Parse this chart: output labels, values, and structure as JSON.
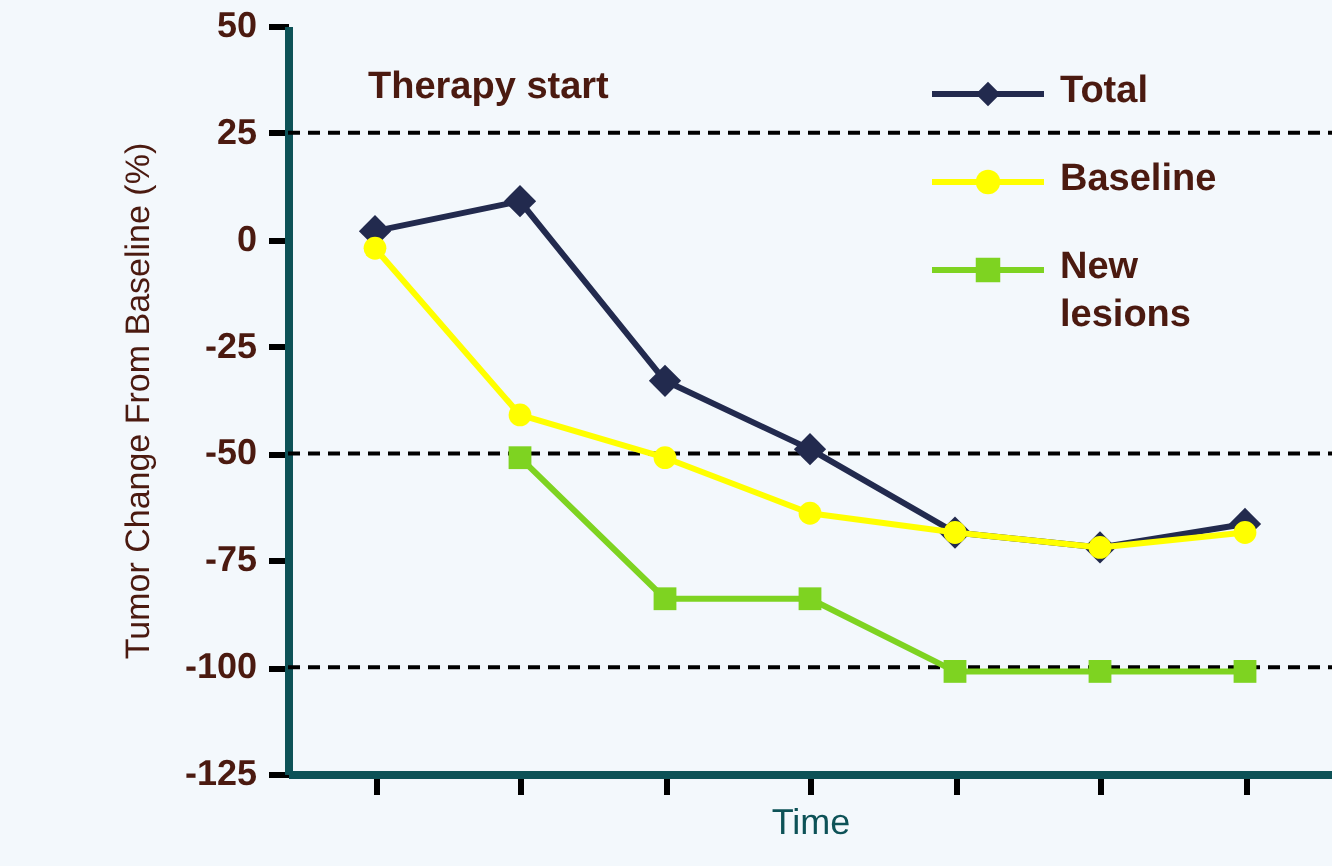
{
  "chart_data": {
    "type": "line",
    "xlabel": "Time",
    "ylabel": "Tumor Change From Baseline (%)",
    "annotations": [
      "Therapy start"
    ],
    "categories": [
      null,
      null,
      null,
      null,
      null,
      null,
      null
    ],
    "series": [
      {
        "name": "Total",
        "color": "#222a4e",
        "marker": "diamond",
        "values": [
          2,
          9,
          -33,
          -49,
          -68.5,
          -72,
          -66.5
        ]
      },
      {
        "name": "Baseline",
        "color": "#ffff00",
        "marker": "circle",
        "values": [
          -2,
          -41,
          -51,
          -64,
          -68.5,
          -72,
          -68.5
        ]
      },
      {
        "name": "New lesions",
        "color": "#7ed321",
        "marker": "square",
        "values": [
          null,
          -51,
          -84,
          -84,
          -101,
          -101,
          -101
        ]
      }
    ],
    "ylim": [
      -125,
      50
    ],
    "yticks": [
      -125,
      -100,
      -75,
      -50,
      -25,
      0,
      25,
      50
    ],
    "tick_labels": "y",
    "ref_lines": [
      {
        "axis": "y",
        "value": 25,
        "color": "#000000",
        "line_style": "dashed"
      },
      {
        "axis": "y",
        "value": -50,
        "color": "#000000",
        "line_style": "dashed"
      },
      {
        "axis": "y",
        "value": -100,
        "color": "#000000",
        "line_style": "dashed"
      }
    ],
    "grid": false,
    "legend": "top right",
    "line_style": "solid"
  }
}
